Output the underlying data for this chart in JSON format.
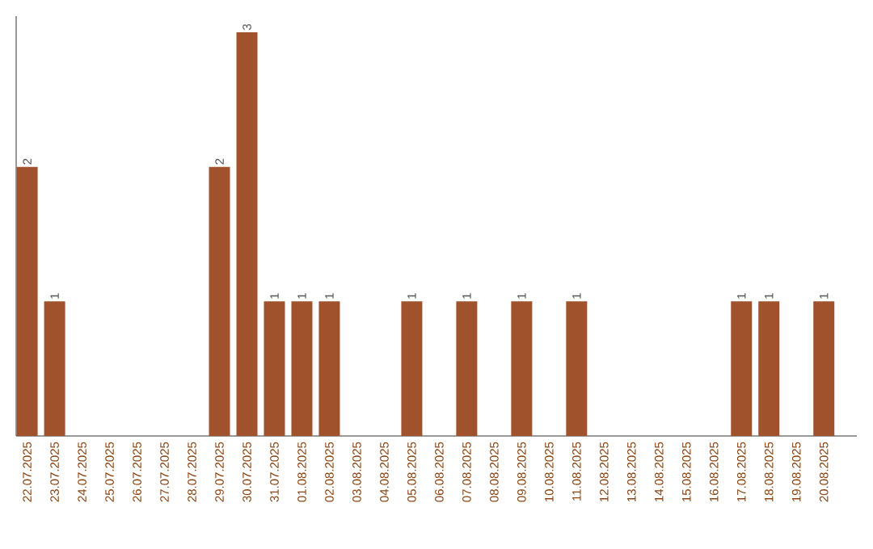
{
  "chart_data": {
    "type": "bar",
    "categories": [
      "22.07.2025",
      "23.07.2025",
      "24.07.2025",
      "25.07.2025",
      "26.07.2025",
      "27.07.2025",
      "28.07.2025",
      "29.07.2025",
      "30.07.2025",
      "31.07.2025",
      "01.08.2025",
      "02.08.2025",
      "03.08.2025",
      "04.08.2025",
      "05.08.2025",
      "06.08.2025",
      "07.08.2025",
      "08.08.2025",
      "09.08.2025",
      "10.08.2025",
      "11.08.2025",
      "12.08.2025",
      "13.08.2025",
      "14.08.2025",
      "15.08.2025",
      "16.08.2025",
      "17.08.2025",
      "18.08.2025",
      "19.08.2025",
      "20.08.2025"
    ],
    "values": [
      2,
      1,
      0,
      0,
      0,
      0,
      0,
      2,
      3,
      1,
      1,
      1,
      0,
      0,
      1,
      0,
      1,
      0,
      1,
      0,
      1,
      0,
      0,
      0,
      0,
      0,
      1,
      1,
      0,
      1
    ],
    "value_labels": [
      "2",
      "1",
      null,
      null,
      null,
      null,
      null,
      "2",
      "3",
      "1",
      "1",
      "1",
      null,
      null,
      "1",
      null,
      "1",
      null,
      "1",
      null,
      "1",
      null,
      null,
      null,
      null,
      null,
      "1",
      "1",
      null,
      "1"
    ],
    "color": "#a0522d"
  }
}
